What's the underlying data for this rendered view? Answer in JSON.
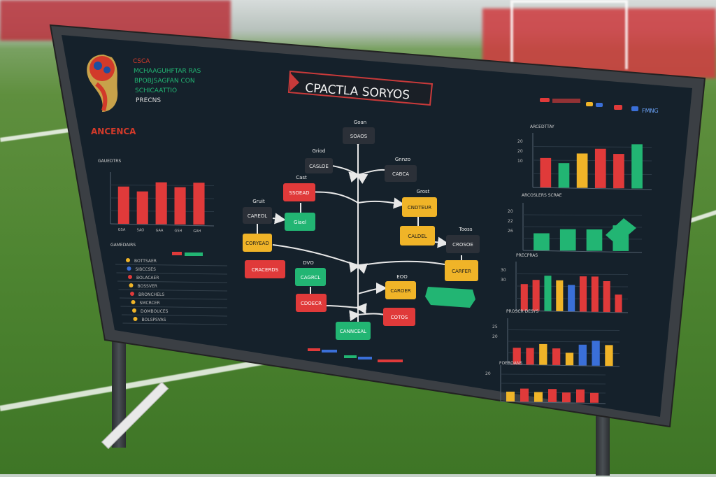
{
  "emblem": {
    "name": "ANCENCA"
  },
  "header_lines": [
    "CSCA",
    "MCHAAGUHFTAR RAS",
    "BPOBJSAGFAN CON",
    "SCHICAATTIO",
    "PRECNS"
  ],
  "diagram": {
    "title": "CPACTLA SORYOS",
    "nodes": [
      {
        "label": "Goan"
      },
      {
        "label": "SOAOS"
      },
      {
        "label": "Griod"
      },
      {
        "label": "CASLOE"
      },
      {
        "label": "Gnnzo"
      },
      {
        "label": "CABCA"
      },
      {
        "label": "Cast"
      },
      {
        "label": "SSOEAD"
      },
      {
        "label": "Gruit"
      },
      {
        "label": "CAREOL"
      },
      {
        "label": "Grost"
      },
      {
        "label": "CNDTEUR"
      },
      {
        "label": "Giael"
      },
      {
        "label": "CORYEAD"
      },
      {
        "label": "Tooss"
      },
      {
        "label": "CALDEL"
      },
      {
        "label": "CRACERDS"
      },
      {
        "label": "DVO"
      },
      {
        "label": "CAGRCL"
      },
      {
        "label": "CDOECR"
      },
      {
        "label": "EOO"
      },
      {
        "label": "CAROER"
      },
      {
        "label": "CROSOE"
      },
      {
        "label": "CARFER"
      },
      {
        "label": "COTOS"
      },
      {
        "label": "CANNCEAL"
      }
    ]
  },
  "legend_top_right": "FMNG",
  "stats_rows": [
    "BOTTSAER",
    "SIBCCSES",
    "BOLACAER",
    "BOSSVER",
    "BRONCHELS",
    "SMCRCER",
    "DOMBOUCES",
    "BOLSPSVAS"
  ],
  "stats_header": "GAMEDAIRS",
  "chart_data": [
    {
      "type": "bar",
      "title": "GAUEDTRS",
      "ylabel": "",
      "categories": [
        "GSA",
        "SAO",
        "GAA",
        "GSH",
        "GAH"
      ],
      "values": [
        8,
        7,
        9,
        8,
        9
      ],
      "ylim": [
        0,
        10
      ],
      "colors": [
        "#e03a3a",
        "#e03a3a",
        "#e03a3a",
        "#e03a3a",
        "#e03a3a"
      ]
    },
    {
      "type": "bar",
      "title": "ARCEDTTAY",
      "yticks": [
        "20",
        "20",
        "10"
      ],
      "values": [
        6,
        5,
        7,
        8,
        7,
        9
      ],
      "ylim": [
        0,
        10
      ],
      "colors": [
        "#e03a3a",
        "#22b573",
        "#f0b428",
        "#e03a3a",
        "#e03a3a",
        "#22b573"
      ]
    },
    {
      "type": "bar",
      "title": "ARCOSLERS SCRAE",
      "yticks": [
        "20",
        "22",
        "26"
      ],
      "values": [
        4,
        5,
        5,
        6
      ],
      "ylim": [
        0,
        10
      ],
      "colors": [
        "#22b573",
        "#22b573",
        "#22b573",
        "#22b573"
      ]
    },
    {
      "type": "bar",
      "title": "PRECPRAS",
      "yticks": [
        "30",
        "30"
      ],
      "values": [
        6,
        7,
        8,
        7,
        6,
        8,
        8,
        7,
        4
      ],
      "ylim": [
        0,
        10
      ],
      "colors": [
        "#e03a3a",
        "#e03a3a",
        "#22b573",
        "#f0b428",
        "#3a6fd8",
        "#e03a3a",
        "#e03a3a",
        "#e03a3a",
        "#e03a3a"
      ]
    },
    {
      "type": "bar",
      "title": "PROSCR DESYS",
      "yticks": [
        "25",
        "20"
      ],
      "values": [
        4,
        4,
        5,
        4,
        3,
        5,
        6,
        5
      ],
      "ylim": [
        0,
        10
      ],
      "colors": [
        "#e03a3a",
        "#e03a3a",
        "#f0b428",
        "#e03a3a",
        "#f0b428",
        "#3a6fd8",
        "#3a6fd8",
        "#f0b428"
      ]
    },
    {
      "type": "bar",
      "title": "FOEROANS",
      "yticks": [
        "20"
      ],
      "values": [
        3,
        4,
        3,
        4,
        3,
        4,
        3
      ],
      "ylim": [
        0,
        10
      ],
      "colors": [
        "#f0b428",
        "#e03a3a",
        "#f0b428",
        "#e03a3a",
        "#e03a3a",
        "#e03a3a",
        "#e03a3a"
      ]
    }
  ]
}
